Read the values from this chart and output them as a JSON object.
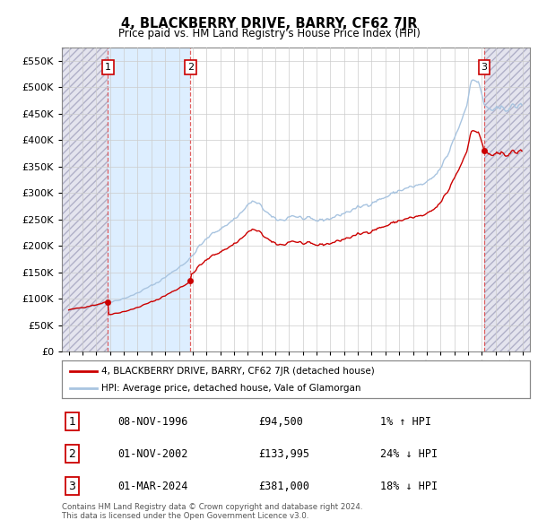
{
  "title": "4, BLACKBERRY DRIVE, BARRY, CF62 7JR",
  "subtitle": "Price paid vs. HM Land Registry's House Price Index (HPI)",
  "ylim": [
    0,
    575000
  ],
  "yticks": [
    0,
    50000,
    100000,
    150000,
    200000,
    250000,
    300000,
    350000,
    400000,
    450000,
    500000,
    550000
  ],
  "ytick_labels": [
    "£0",
    "£50K",
    "£100K",
    "£150K",
    "£200K",
    "£250K",
    "£300K",
    "£350K",
    "£400K",
    "£450K",
    "£500K",
    "£550K"
  ],
  "sale_dates": [
    "1996-11-08",
    "2002-11-01",
    "2024-03-01"
  ],
  "sale_prices": [
    94500,
    133995,
    381000
  ],
  "sale_labels": [
    "1",
    "2",
    "3"
  ],
  "hpi_color": "#a8c4e0",
  "price_color": "#cc0000",
  "marker_color": "#cc0000",
  "vline_color": "#dd4444",
  "hatch_face_color": "#e4e4ee",
  "hatch_edge_color": "#b0b0c8",
  "owned_fill_color": "#ddeeff",
  "legend_label_price": "4, BLACKBERRY DRIVE, BARRY, CF62 7JR (detached house)",
  "legend_label_hpi": "HPI: Average price, detached house, Vale of Glamorgan",
  "table_data": [
    [
      "1",
      "08-NOV-1996",
      "£94,500",
      "1% ↑ HPI"
    ],
    [
      "2",
      "01-NOV-2002",
      "£133,995",
      "24% ↓ HPI"
    ],
    [
      "3",
      "01-MAR-2024",
      "£381,000",
      "18% ↓ HPI"
    ]
  ],
  "footer": "Contains HM Land Registry data © Crown copyright and database right 2024.\nThis data is licensed under the Open Government Licence v3.0.",
  "xlim_start": 1993.5,
  "xlim_end": 2027.5,
  "xtick_start": 1994,
  "xtick_end": 2027,
  "xtick_step": 1
}
